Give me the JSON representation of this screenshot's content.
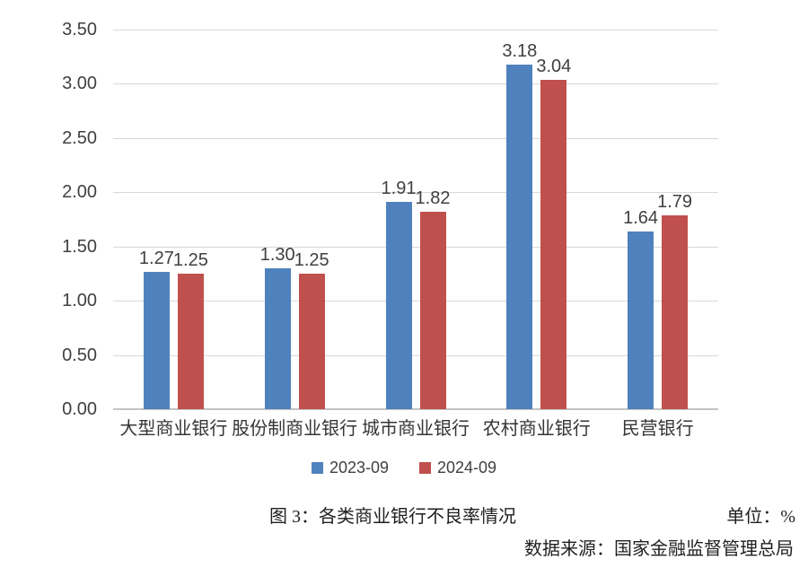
{
  "chart_data": {
    "type": "bar",
    "categories": [
      "大型商业银行",
      "股份制商业银行",
      "城市商业银行",
      "农村商业银行",
      "民营银行"
    ],
    "series": [
      {
        "name": "2023-09",
        "color": "#4f81bd",
        "values": [
          1.27,
          1.3,
          1.91,
          3.18,
          1.64
        ]
      },
      {
        "name": "2024-09",
        "color": "#c0504d",
        "values": [
          1.25,
          1.25,
          1.82,
          3.04,
          1.79
        ]
      }
    ],
    "title": "图 3：各类商业银行不良率情况",
    "xlabel": "",
    "ylabel": "",
    "unit": "单位：%",
    "ylim": [
      0,
      3.5
    ],
    "ytick_step": 0.5,
    "ytick_labels": [
      "0.00",
      "0.50",
      "1.00",
      "1.50",
      "2.00",
      "2.50",
      "3.00",
      "3.50"
    ],
    "value_label_decimals": 2,
    "grid": true,
    "legend_position": "bottom"
  },
  "caption": {
    "figure_label": "图 3：各类商业银行不良率情况",
    "unit_label": "单位：%",
    "source": "数据来源：国家金融监督管理总局"
  },
  "colors": {
    "grid": "#d8d8d8",
    "axis": "#c3c3c3",
    "chart_text": "#404040",
    "series_blue": "#4f81bd",
    "series_red": "#c0504d"
  }
}
